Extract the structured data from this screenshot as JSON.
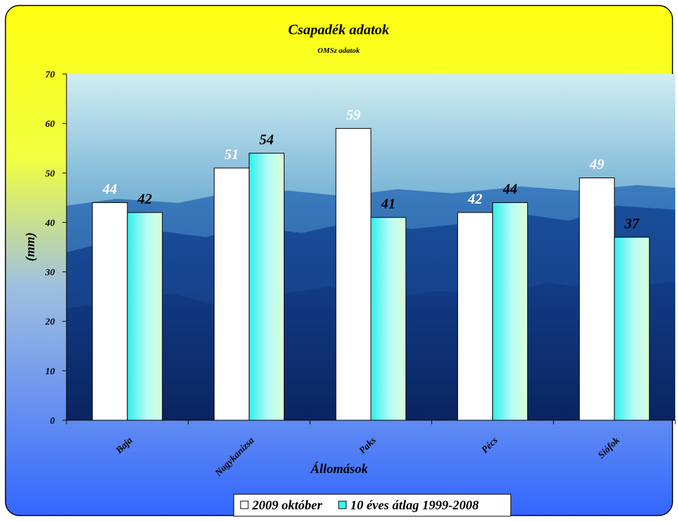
{
  "chart_data": {
    "type": "bar",
    "title": "Csapadék adatok",
    "subtitle": "OMSz adatok",
    "xlabel": "Állomások",
    "ylabel": "(mm)",
    "ylim": [
      0,
      70
    ],
    "yticks": [
      0,
      10,
      20,
      30,
      40,
      50,
      60,
      70
    ],
    "grid": false,
    "legend_position": "bottom",
    "categories": [
      "Baja",
      "Nagykanizsa",
      "Paks",
      "Pécs",
      "Siófok"
    ],
    "series": [
      {
        "name": "2009 október",
        "values": [
          44,
          51,
          59,
          42,
          49
        ],
        "color": "#ffffff",
        "label_color": "#ffffff"
      },
      {
        "name": "10 éves átlag 1999-2008",
        "values": [
          42,
          54,
          41,
          44,
          37
        ],
        "color": "#33ffee",
        "label_color": "#000000"
      }
    ]
  },
  "colors": {
    "background_top": "#ffff00",
    "background_bottom": "#3366ff",
    "plot_sky": "#bfe4ee",
    "plot_mountains": "#0d2e7a"
  }
}
